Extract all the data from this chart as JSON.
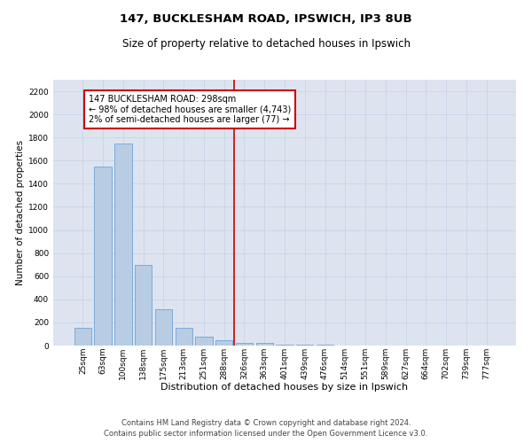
{
  "title_line1": "147, BUCKLESHAM ROAD, IPSWICH, IP3 8UB",
  "title_line2": "Size of property relative to detached houses in Ipswich",
  "xlabel": "Distribution of detached houses by size in Ipswich",
  "ylabel": "Number of detached properties",
  "categories": [
    "25sqm",
    "63sqm",
    "100sqm",
    "138sqm",
    "175sqm",
    "213sqm",
    "251sqm",
    "288sqm",
    "326sqm",
    "363sqm",
    "401sqm",
    "439sqm",
    "476sqm",
    "514sqm",
    "551sqm",
    "589sqm",
    "627sqm",
    "664sqm",
    "702sqm",
    "739sqm",
    "777sqm"
  ],
  "values": [
    155,
    1550,
    1750,
    700,
    315,
    155,
    80,
    45,
    25,
    20,
    10,
    5,
    10,
    0,
    0,
    0,
    0,
    0,
    0,
    0,
    0
  ],
  "bar_color": "#b8cce4",
  "bar_edge_color": "#5b9bd5",
  "grid_color": "#c8d4e8",
  "bg_color": "#dde4f0",
  "vline_color": "#cc0000",
  "annotation_box_text": "147 BUCKLESHAM ROAD: 298sqm\n← 98% of detached houses are smaller (4,743)\n2% of semi-detached houses are larger (77) →",
  "annotation_box_color": "#cc0000",
  "ylim": [
    0,
    2300
  ],
  "yticks": [
    0,
    200,
    400,
    600,
    800,
    1000,
    1200,
    1400,
    1600,
    1800,
    2000,
    2200
  ],
  "footer_line1": "Contains HM Land Registry data © Crown copyright and database right 2024.",
  "footer_line2": "Contains public sector information licensed under the Open Government Licence v3.0.",
  "title1_fontsize": 9.5,
  "title2_fontsize": 8.5,
  "xlabel_fontsize": 8,
  "ylabel_fontsize": 7.5,
  "tick_fontsize": 6.5,
  "footer_fontsize": 6,
  "annot_fontsize": 7
}
